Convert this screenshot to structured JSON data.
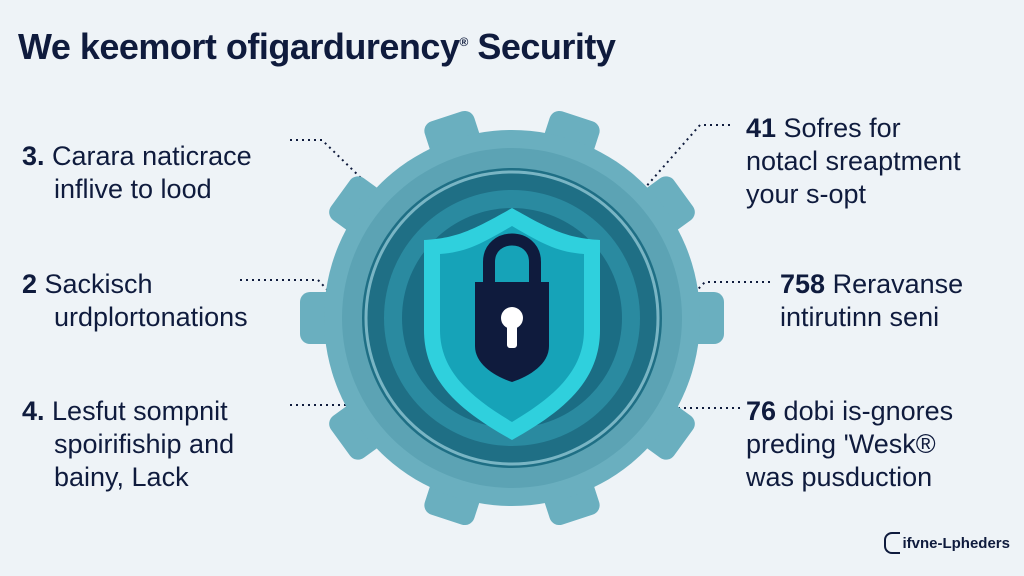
{
  "title": "We keemort ofigardurency",
  "title_sup": "®",
  "title_suffix": " Security",
  "left_items": [
    {
      "num": "3.",
      "line1": " Carara naticrace",
      "line2": "inflive to lood",
      "line3": ""
    },
    {
      "num": "2",
      "line1": "  Sackisch",
      "line2": "urdplortonations",
      "line3": ""
    },
    {
      "num": "4.",
      "line1": " Lesfut sompnit",
      "line2": "spoirifiship and",
      "line3": "bainy, Lack"
    }
  ],
  "right_items": [
    {
      "num": "41",
      "line1": " Sofres for",
      "line2": "notacl sreaptment",
      "line3": "your s-opt"
    },
    {
      "num": "758",
      "line1": " Reravanse",
      "line2": "intirutinn seni",
      "line3": ""
    },
    {
      "num": "76",
      "line1": " dobi is-gnores",
      "line2": "preding 'Wesk®",
      "line3": "was pusduction"
    }
  ],
  "brand": "ifvne-Lpheders",
  "colors": {
    "gear": "#5fa8b8",
    "ring_dark": "#1f6f85",
    "ring_mid": "#2a8aa0",
    "shield_outer": "#2fd0dd",
    "shield_inner": "#1a9fb4",
    "lock": "#0f1b3d",
    "text": "#0f1b3d"
  }
}
